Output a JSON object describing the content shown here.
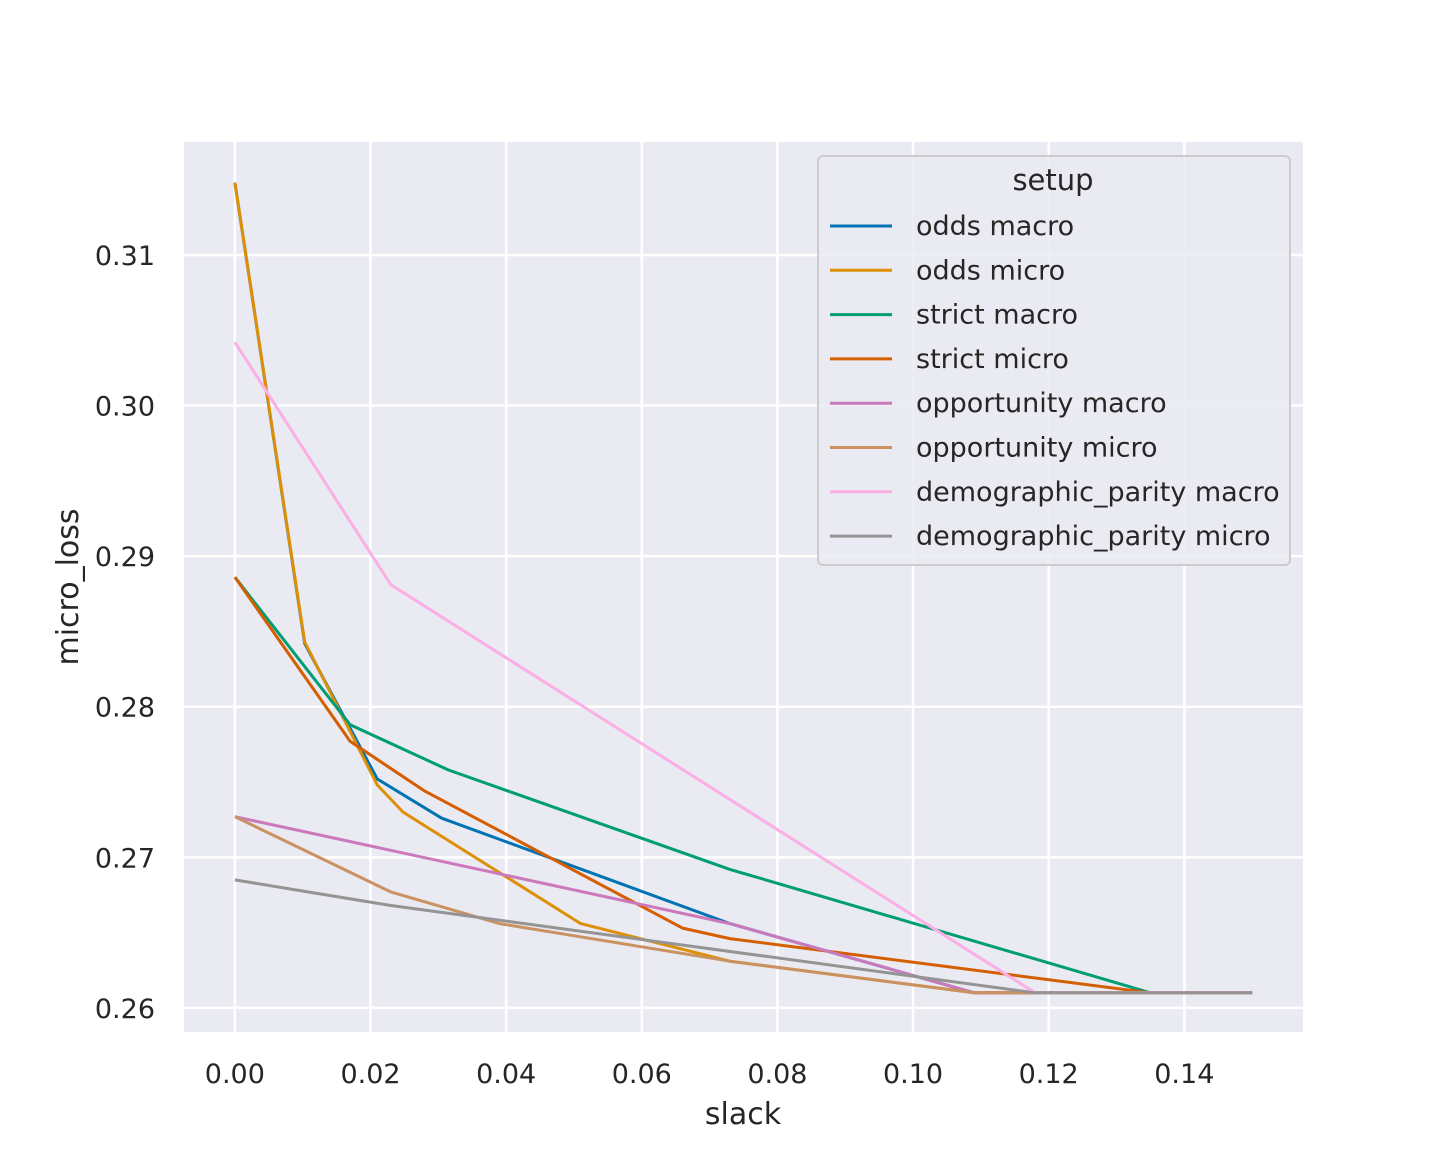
{
  "chart_data": {
    "type": "line",
    "title": "",
    "xlabel": "slack",
    "ylabel": "micro_loss",
    "xlim": [
      -0.0075,
      0.1575
    ],
    "ylim": [
      0.2584,
      0.3175
    ],
    "xticks": [
      "0.00",
      "0.02",
      "0.04",
      "0.06",
      "0.08",
      "0.10",
      "0.12",
      "0.14"
    ],
    "yticks": [
      "0.26",
      "0.27",
      "0.28",
      "0.29",
      "0.30",
      "0.31"
    ],
    "grid": true,
    "legend": {
      "title": "setup",
      "placement": "top-right"
    },
    "series": [
      {
        "name": "odds macro",
        "color": "#0173b2",
        "x": [
          0.0,
          0.0103,
          0.021,
          0.0305,
          0.073,
          0.109,
          0.118,
          0.135,
          0.15
        ],
        "y": [
          0.3148,
          0.2842,
          0.2752,
          0.2726,
          0.2656,
          0.261,
          0.261,
          0.261,
          0.261
        ]
      },
      {
        "name": "odds micro",
        "color": "#de8f05",
        "x": [
          0.0,
          0.0103,
          0.021,
          0.0248,
          0.051,
          0.073,
          0.109,
          0.118,
          0.135,
          0.15
        ],
        "y": [
          0.3148,
          0.2843,
          0.2748,
          0.273,
          0.2656,
          0.2631,
          0.261,
          0.261,
          0.261,
          0.261
        ]
      },
      {
        "name": "strict macro",
        "color": "#029e73",
        "x": [
          0.0,
          0.017,
          0.0315,
          0.073,
          0.135,
          0.15
        ],
        "y": [
          0.2886,
          0.2788,
          0.2758,
          0.2692,
          0.261,
          0.261
        ]
      },
      {
        "name": "strict micro",
        "color": "#d55e00",
        "x": [
          0.0,
          0.017,
          0.028,
          0.066,
          0.073,
          0.135,
          0.15
        ],
        "y": [
          0.2886,
          0.2777,
          0.2744,
          0.2653,
          0.2646,
          0.261,
          0.261
        ]
      },
      {
        "name": "opportunity macro",
        "color": "#cc78bc",
        "x": [
          0.0,
          0.073,
          0.109,
          0.118,
          0.135,
          0.15
        ],
        "y": [
          0.2727,
          0.2656,
          0.261,
          0.261,
          0.261,
          0.261
        ]
      },
      {
        "name": "opportunity micro",
        "color": "#ca9161",
        "x": [
          0.0,
          0.023,
          0.039,
          0.073,
          0.109,
          0.118,
          0.135,
          0.15
        ],
        "y": [
          0.2727,
          0.2677,
          0.2656,
          0.2631,
          0.261,
          0.261,
          0.261,
          0.261
        ]
      },
      {
        "name": "demographic_parity macro",
        "color": "#fbafe4",
        "x": [
          0.0,
          0.023,
          0.118,
          0.135,
          0.15
        ],
        "y": [
          0.3042,
          0.2881,
          0.261,
          0.261,
          0.261
        ]
      },
      {
        "name": "demographic_parity micro",
        "color": "#949494",
        "x": [
          0.0,
          0.023,
          0.118,
          0.135,
          0.15
        ],
        "y": [
          0.2685,
          0.2668,
          0.261,
          0.261,
          0.261
        ]
      }
    ]
  }
}
